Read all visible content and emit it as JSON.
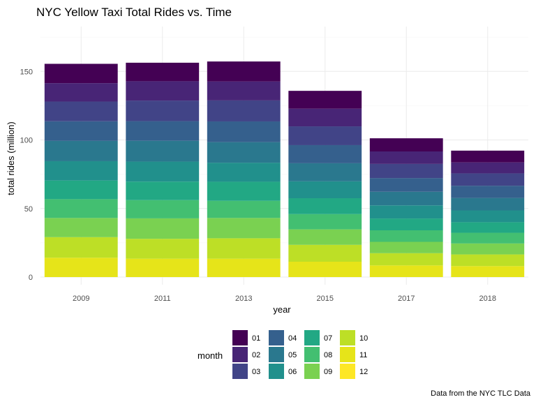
{
  "chart_data": {
    "type": "bar",
    "stacked": true,
    "title": "NYC Yellow Taxi Total Rides vs. Time",
    "xlabel": "year",
    "ylabel": "total rides (million)",
    "caption": "Data from the NYC TLC Data",
    "ylim": [
      0,
      180
    ],
    "yticks": [
      0,
      50,
      100,
      150
    ],
    "grid": true,
    "legend_position": "bottom",
    "legend_title": "month",
    "categories": [
      "2009",
      "2011",
      "2013",
      "2015",
      "2017",
      "2018"
    ],
    "series": [
      {
        "name": "01",
        "color": "#440154",
        "values": [
          14.1,
          13.5,
          14.6,
          13.0,
          9.6,
          8.6
        ]
      },
      {
        "name": "02",
        "color": "#482576",
        "values": [
          13.4,
          14.1,
          13.8,
          12.9,
          9.1,
          8.0
        ]
      },
      {
        "name": "03",
        "color": "#414487",
        "values": [
          14.4,
          15.0,
          15.3,
          13.7,
          10.3,
          9.0
        ]
      },
      {
        "name": "04",
        "color": "#35608d",
        "values": [
          14.3,
          14.3,
          15.1,
          13.2,
          10.0,
          8.9
        ]
      },
      {
        "name": "05",
        "color": "#2a788e",
        "values": [
          14.8,
          15.2,
          15.0,
          13.2,
          9.9,
          9.1
        ]
      },
      {
        "name": "06",
        "color": "#21908c",
        "values": [
          14.1,
          14.6,
          13.9,
          12.3,
          9.6,
          8.6
        ]
      },
      {
        "name": "07",
        "color": "#22a884",
        "values": [
          13.6,
          13.5,
          13.9,
          11.6,
          8.6,
          7.7
        ]
      },
      {
        "name": "08",
        "color": "#43bf71",
        "values": [
          13.7,
          13.3,
          12.5,
          11.1,
          8.4,
          7.8
        ]
      },
      {
        "name": "09",
        "color": "#7ad151",
        "values": [
          14.0,
          14.9,
          14.8,
          11.3,
          8.3,
          8.0
        ]
      },
      {
        "name": "10",
        "color": "#bddf26",
        "values": [
          15.0,
          14.5,
          14.9,
          12.3,
          8.9,
          8.5
        ]
      },
      {
        "name": "11",
        "color": "#e6e419",
        "values": [
          14.1,
          13.4,
          13.4,
          11.2,
          8.5,
          8.0
        ]
      },
      {
        "name": "12",
        "color": "#fde725",
        "values": [
          0,
          0,
          0,
          0,
          0,
          0
        ]
      }
    ]
  }
}
